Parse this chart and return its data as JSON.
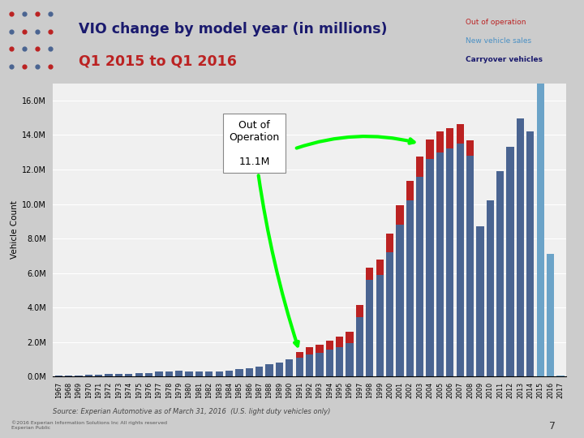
{
  "years": [
    1967,
    1968,
    1969,
    1970,
    1971,
    1972,
    1973,
    1974,
    1975,
    1976,
    1977,
    1978,
    1979,
    1980,
    1981,
    1982,
    1983,
    1984,
    1985,
    1986,
    1987,
    1988,
    1989,
    1990,
    1991,
    1992,
    1993,
    1994,
    1995,
    1996,
    1997,
    1998,
    1999,
    2000,
    2001,
    2002,
    2003,
    2004,
    2005,
    2006,
    2007,
    2008,
    2009,
    2010,
    2011,
    2012,
    2013,
    2014,
    2015,
    2016,
    2017
  ],
  "carryover": [
    0.05,
    0.06,
    0.08,
    0.09,
    0.11,
    0.14,
    0.17,
    0.17,
    0.19,
    0.22,
    0.28,
    0.32,
    0.34,
    0.32,
    0.3,
    0.28,
    0.3,
    0.36,
    0.42,
    0.5,
    0.6,
    0.72,
    0.82,
    1.0,
    1.1,
    1.28,
    1.4,
    1.55,
    1.7,
    1.95,
    3.45,
    5.6,
    5.9,
    7.2,
    8.8,
    10.2,
    11.6,
    12.6,
    13.0,
    13.2,
    13.5,
    12.8,
    8.7,
    10.2,
    11.9,
    13.3,
    14.95,
    14.2,
    0.0,
    0.0,
    0.0
  ],
  "new_vehicle": [
    0.0,
    0.0,
    0.0,
    0.0,
    0.0,
    0.0,
    0.0,
    0.0,
    0.0,
    0.0,
    0.0,
    0.0,
    0.0,
    0.0,
    0.0,
    0.0,
    0.0,
    0.0,
    0.0,
    0.0,
    0.0,
    0.0,
    0.0,
    0.0,
    0.0,
    0.0,
    0.0,
    0.0,
    0.0,
    0.0,
    0.0,
    0.0,
    0.0,
    0.0,
    0.0,
    0.0,
    0.0,
    0.0,
    0.0,
    0.0,
    0.0,
    0.0,
    0.0,
    0.0,
    0.0,
    0.0,
    0.0,
    0.0,
    17.4,
    7.1,
    0.05
  ],
  "out_of_operation": [
    0.0,
    0.0,
    0.0,
    0.0,
    0.0,
    0.0,
    0.0,
    0.0,
    0.0,
    0.0,
    0.0,
    0.0,
    0.0,
    0.0,
    0.0,
    0.0,
    0.0,
    0.0,
    0.0,
    0.0,
    0.0,
    0.0,
    0.0,
    0.0,
    0.35,
    0.45,
    0.45,
    0.55,
    0.6,
    0.65,
    0.7,
    0.7,
    0.9,
    1.1,
    1.15,
    1.15,
    1.15,
    1.15,
    1.2,
    1.2,
    1.15,
    0.9,
    0.0,
    0.0,
    0.0,
    0.0,
    0.0,
    0.0,
    0.0,
    0.0,
    0.0
  ],
  "carryover_color": "#4a6491",
  "new_vehicle_color": "#6ba3c8",
  "out_of_operation_color": "#bb2222",
  "title_line1": "VIO change by model year (in millions)",
  "title_line2": "Q1 2015 to Q1 2016",
  "ylabel": "Vehicle Count",
  "ytick_labels": [
    "0.0M",
    "2.0M",
    "4.0M",
    "6.0M",
    "8.0M",
    "10.0M",
    "12.0M",
    "14.0M",
    "16.0M"
  ],
  "ytick_vals": [
    0,
    2,
    4,
    6,
    8,
    10,
    12,
    14,
    16
  ],
  "source_text": "Source: Experian Automotive as of March 31, 2016  (U.S. light duty vehicles only)",
  "bg_color": "#cccccc",
  "plot_bg_color": "#f0f0f0",
  "header_bg": "#c0c0c8"
}
